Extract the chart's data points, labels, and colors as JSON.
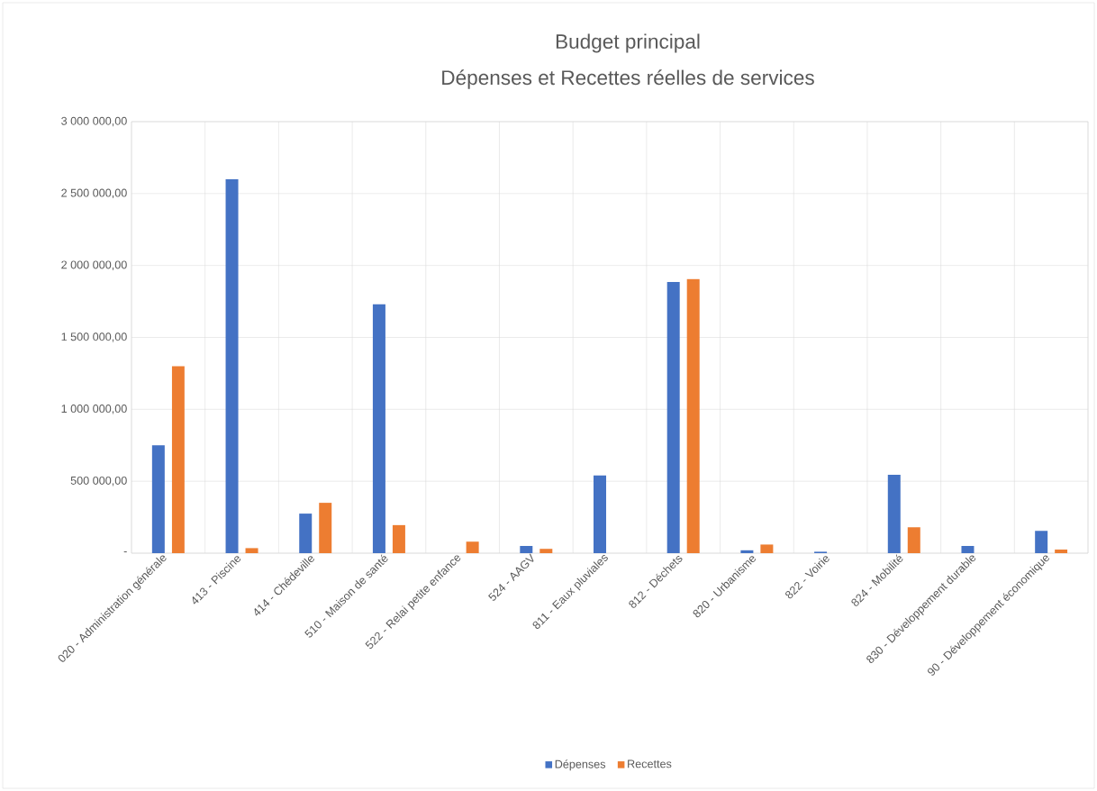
{
  "chart_data": {
    "type": "bar",
    "title": "Budget principal",
    "subtitle": "Dépenses et Recettes réelles de services",
    "categories": [
      "020 - Administration générale",
      "413 - Piscine",
      "414 - Chédeville",
      "510 - Maison de santé",
      "522 - Relai petite enfance",
      "524 - AAGV",
      "811 - Eaux pluviales",
      "812 - Déchets",
      "820 - Urbanisme",
      "822 - Voirie",
      "824 - Mobilité",
      "830 - Développement durable",
      "90 - Développement économique"
    ],
    "series": [
      {
        "name": "Dépenses",
        "color": "#4472c4",
        "values": [
          750000,
          2600000,
          275000,
          1730000,
          null,
          50000,
          540000,
          1885000,
          20000,
          10000,
          545000,
          50000,
          155000
        ]
      },
      {
        "name": "Recettes",
        "color": "#ed7d31",
        "values": [
          1300000,
          35000,
          350000,
          195000,
          80000,
          30000,
          null,
          1905000,
          60000,
          null,
          180000,
          null,
          25000
        ]
      }
    ],
    "ylim": [
      0,
      3000000
    ],
    "yticks": [
      {
        "value": 0,
        "label": "-"
      },
      {
        "value": 500000,
        "label": "500 000,00"
      },
      {
        "value": 1000000,
        "label": "1 000 000,00"
      },
      {
        "value": 1500000,
        "label": "1 500 000,00"
      },
      {
        "value": 2000000,
        "label": "2 000 000,00"
      },
      {
        "value": 2500000,
        "label": "2 500 000,00"
      },
      {
        "value": 3000000,
        "label": "3 000 000,00"
      }
    ],
    "grid": true,
    "legend": "bottom"
  }
}
